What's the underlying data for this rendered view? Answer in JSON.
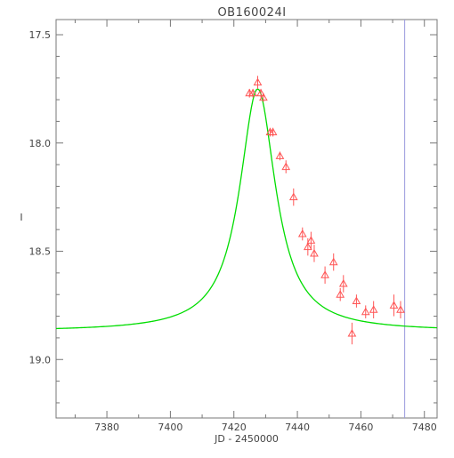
{
  "chart_data": {
    "type": "scatter",
    "title": "OB160024I",
    "xlabel": "JD - 2450000",
    "ylabel": "I",
    "xlim": [
      7364,
      7484
    ],
    "ylim": [
      19.27,
      17.43
    ],
    "y_inverted": true,
    "x_ticks": [
      7380,
      7400,
      7420,
      7440,
      7460,
      7480
    ],
    "y_ticks": [
      17.5,
      18.0,
      18.5,
      19.0
    ],
    "y_tick_labels": [
      "17.5",
      "18.0",
      "18.5",
      "19.0"
    ],
    "model_curve": {
      "name": "",
      "color": "#00dd00",
      "t0": 7427.5,
      "baseline": 18.87,
      "peak": 17.75,
      "width": 6.9
    },
    "vertical_line": {
      "x": 7473.8,
      "color": "#9999dd"
    },
    "series": [
      {
        "name": "",
        "marker": "triangle-open",
        "color": "#ff5555",
        "points": [
          {
            "x": 7424.9,
            "y": 17.77,
            "err": 0.02
          },
          {
            "x": 7426.0,
            "y": 17.77,
            "err": 0.02
          },
          {
            "x": 7427.5,
            "y": 17.72,
            "err": 0.03
          },
          {
            "x": 7428.5,
            "y": 17.77,
            "err": 0.02
          },
          {
            "x": 7429.3,
            "y": 17.79,
            "err": 0.02
          },
          {
            "x": 7431.4,
            "y": 17.95,
            "err": 0.02
          },
          {
            "x": 7432.3,
            "y": 17.95,
            "err": 0.02
          },
          {
            "x": 7434.5,
            "y": 18.06,
            "err": 0.02
          },
          {
            "x": 7436.4,
            "y": 18.11,
            "err": 0.03
          },
          {
            "x": 7438.8,
            "y": 18.25,
            "err": 0.04
          },
          {
            "x": 7441.6,
            "y": 18.42,
            "err": 0.03
          },
          {
            "x": 7443.3,
            "y": 18.48,
            "err": 0.04
          },
          {
            "x": 7444.3,
            "y": 18.45,
            "err": 0.04
          },
          {
            "x": 7445.3,
            "y": 18.51,
            "err": 0.04
          },
          {
            "x": 7448.7,
            "y": 18.61,
            "err": 0.04
          },
          {
            "x": 7451.4,
            "y": 18.55,
            "err": 0.04
          },
          {
            "x": 7453.5,
            "y": 18.7,
            "err": 0.03
          },
          {
            "x": 7454.5,
            "y": 18.65,
            "err": 0.04
          },
          {
            "x": 7457.2,
            "y": 18.88,
            "err": 0.05
          },
          {
            "x": 7458.6,
            "y": 18.73,
            "err": 0.03
          },
          {
            "x": 7461.5,
            "y": 18.78,
            "err": 0.03
          },
          {
            "x": 7464.0,
            "y": 18.77,
            "err": 0.04
          },
          {
            "x": 7470.4,
            "y": 18.75,
            "err": 0.05
          },
          {
            "x": 7472.5,
            "y": 18.77,
            "err": 0.04
          }
        ]
      }
    ]
  }
}
